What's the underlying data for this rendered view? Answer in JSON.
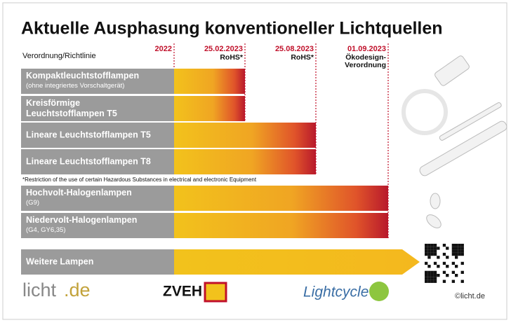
{
  "title": "Aktuelle Ausphasung konventioneller Lichtquellen",
  "header_label": "Verordnung/Richtlinie",
  "milestones": [
    {
      "date": "2022"
    },
    {
      "date": "25.02.2023",
      "label": [
        "RoHS*"
      ],
      "rows": [
        {
          "name": [
            "Kompaktleuchtstofflampen"
          ],
          "note": "(ohne integriertes Vorschaltgerät)"
        },
        {
          "name": [
            "Kreisförmige",
            "Leuchtstofflampen T5"
          ]
        }
      ]
    },
    {
      "date": "25.08.2023",
      "label": [
        "RoHS*"
      ],
      "rows": [
        {
          "name": [
            "Lineare Leuchtstofflampen T5"
          ]
        },
        {
          "name": [
            "Lineare Leuchtstofflampen T8"
          ]
        }
      ]
    },
    {
      "date": "01.09.2023",
      "label": [
        "Ökodesign-",
        "Verordnung"
      ],
      "rows": [
        {
          "name": [
            "Hochvolt-Halogenlampen"
          ],
          "note": "(G9)"
        },
        {
          "name": [
            "Niedervolt-Halogenlampen"
          ],
          "note": "(G4, GY6,35)"
        }
      ]
    }
  ],
  "footnote": "*Restriction of the use of certain Hazardous Substances in electrical and electronic Equipment",
  "open_row": {
    "name": [
      "Weitere Lampen"
    ]
  },
  "logos": {
    "licht": [
      "licht",
      ".de"
    ],
    "zveh": "ZVEH",
    "lightcycle": "Lightcycle"
  },
  "copyright": "©licht.de"
}
